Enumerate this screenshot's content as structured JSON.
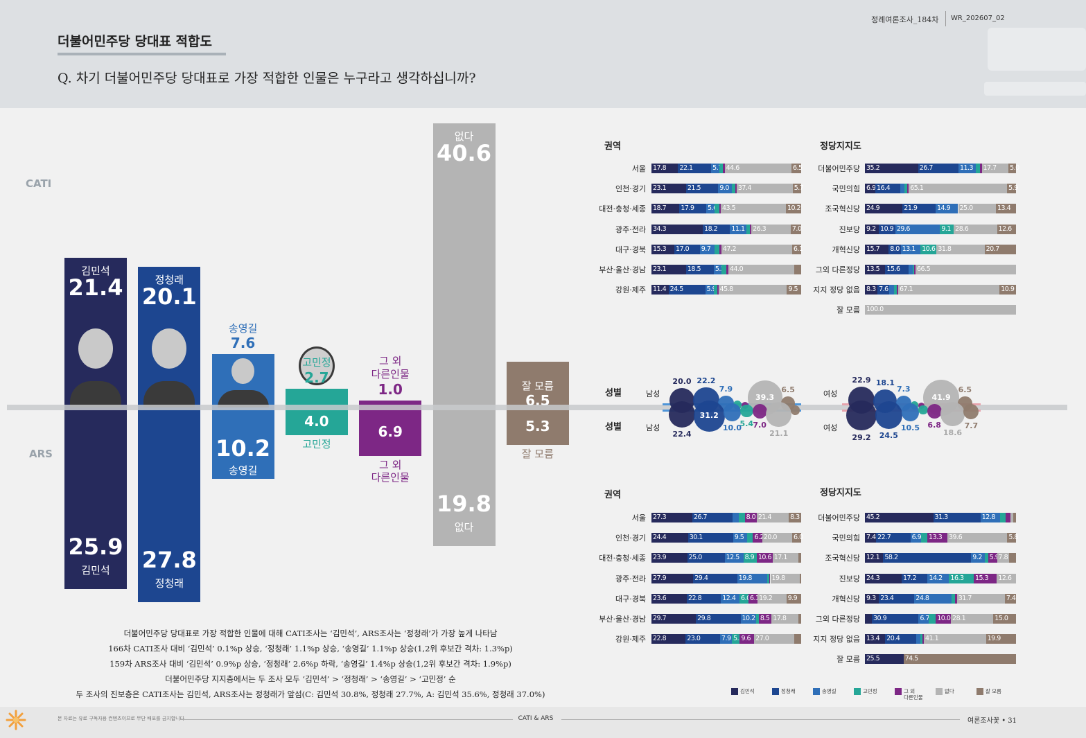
{
  "header": {
    "title": "더불어민주당 당대표 적합도",
    "question": "Q. 차기 더불어민주당 당대표로 가장 적합한 인물은 누구라고 생각하십니까?",
    "survey": "정례여론조사_184차",
    "code": "WR_202607_02"
  },
  "chart_data": [
    {
      "type": "bar",
      "orientation": "diverging",
      "categories": [
        "김민석",
        "정청래",
        "송영길",
        "고민정",
        "그 외 다른인물",
        "없다",
        "잘 모름"
      ],
      "colors": [
        "#262a5c",
        "#1d4690",
        "#2f6fb8",
        "#25a697",
        "#7d2785",
        "#b4b4b4",
        "#8f7b6d"
      ],
      "series": [
        {
          "name": "CATI",
          "values": [
            21.4,
            20.1,
            7.6,
            2.7,
            1.0,
            40.6,
            6.5
          ]
        },
        {
          "name": "ARS",
          "values": [
            25.9,
            27.8,
            10.2,
            4.0,
            6.9,
            19.8,
            5.3
          ]
        }
      ]
    },
    {
      "type": "bar",
      "stacked": true,
      "orientation": "horizontal",
      "title": "권역",
      "categories": [
        "서울",
        "인천·경기",
        "대전·충청·세종",
        "광주·전라",
        "대구·경북",
        "부산·울산·경남",
        "강원·제주"
      ],
      "series": [
        {
          "values": [
            17.8,
            23.1,
            18.7,
            34.3,
            15.3,
            23.1,
            11.4
          ]
        },
        {
          "values": [
            22.1,
            21.5,
            17.9,
            18.2,
            17.0,
            18.5,
            24.5
          ]
        },
        {
          "values": [
            5.7,
            9.0,
            5.6,
            11.1,
            9.7,
            5.2,
            5.9
          ]
        },
        {
          "values": [
            2.0,
            2.3,
            3.0,
            2.3,
            3.5,
            3.0,
            2.0
          ]
        },
        {
          "values": [
            1.3,
            1.0,
            1.1,
            0.8,
            1.2,
            1.6,
            0.9
          ]
        },
        {
          "values": [
            44.6,
            37.4,
            43.5,
            26.3,
            47.2,
            44.0,
            45.8
          ]
        },
        {
          "values": [
            6.5,
            5.7,
            10.2,
            7.0,
            6.1,
            4.6,
            9.5
          ]
        }
      ]
    },
    {
      "type": "bar",
      "stacked": true,
      "orientation": "horizontal",
      "title": "정당지지도",
      "categories": [
        "더불어민주당",
        "국민의힘",
        "조국혁신당",
        "진보당",
        "개혁신당",
        "그외 다른정당",
        "지지 정당 없음",
        "잘 모름"
      ],
      "series": [
        {
          "values": [
            35.2,
            6.9,
            24.9,
            9.2,
            15.7,
            13.5,
            8.3,
            0
          ]
        },
        {
          "values": [
            26.7,
            16.4,
            21.9,
            10.9,
            8.0,
            15.6,
            7.6,
            0
          ]
        },
        {
          "values": [
            11.3,
            3.0,
            14.9,
            29.6,
            13.1,
            2.4,
            3.5,
            0
          ]
        },
        {
          "values": [
            3.0,
            1.7,
            0,
            9.1,
            10.6,
            1.0,
            1.5,
            0
          ]
        },
        {
          "values": [
            1.1,
            1.0,
            0,
            0,
            0,
            1.0,
            1.1,
            0
          ]
        },
        {
          "values": [
            17.7,
            65.1,
            25.0,
            28.6,
            31.8,
            66.5,
            67.1,
            100.0
          ]
        },
        {
          "values": [
            5.0,
            5.9,
            13.4,
            12.6,
            20.7,
            0,
            10.9,
            0
          ]
        }
      ]
    },
    {
      "type": "bubble",
      "title": "성별",
      "categories": [
        "남성",
        "여성"
      ],
      "series": [
        {
          "values": [
            [
              20.0,
              22.2,
              7.9,
              2.5,
              1.6,
              39.3,
              6.5
            ],
            [
              22.9,
              18.1,
              7.3,
              2.0,
              1.3,
              41.9,
              6.5
            ]
          ]
        },
        {
          "values": [
            [
              22.4,
              31.2,
              10.0,
              5.4,
              7.0,
              21.1,
              2.9
            ],
            [
              29.2,
              24.5,
              10.5,
              2.7,
              6.8,
              18.6,
              7.7
            ]
          ]
        }
      ]
    },
    {
      "type": "bar",
      "stacked": true,
      "orientation": "horizontal",
      "title": "권역",
      "categories": [
        "서울",
        "인천·경기",
        "대전·충청·세종",
        "광주·전라",
        "대구·경북",
        "부산·울산·경남",
        "강원·제주"
      ],
      "series": [
        {
          "values": [
            27.3,
            24.4,
            23.9,
            27.9,
            23.6,
            29.7,
            22.8
          ]
        },
        {
          "values": [
            26.7,
            30.1,
            25.0,
            29.4,
            22.8,
            29.8,
            23.0
          ]
        },
        {
          "values": [
            4.5,
            9.5,
            12.5,
            19.8,
            12.4,
            10.2,
            7.9
          ]
        },
        {
          "values": [
            3.8,
            3.8,
            8.9,
            1.5,
            6.0,
            2.0,
            5.3
          ]
        },
        {
          "values": [
            8.0,
            6.2,
            10.6,
            0.8,
            6.1,
            8.5,
            9.6
          ]
        },
        {
          "values": [
            21.4,
            20.0,
            17.1,
            19.8,
            19.2,
            17.8,
            27.0
          ]
        },
        {
          "values": [
            8.3,
            6.0,
            2.0,
            0.8,
            9.9,
            2.0,
            4.4
          ]
        }
      ]
    },
    {
      "type": "bar",
      "stacked": true,
      "orientation": "horizontal",
      "title": "정당지지도",
      "categories": [
        "더불어민주당",
        "국민의힘",
        "조국혁신당",
        "진보당",
        "개혁신당",
        "그외 다른정당",
        "지지 정당 없음",
        "잘 모름"
      ],
      "series": [
        {
          "values": [
            45.2,
            7.4,
            12.1,
            24.3,
            9.3,
            4.6,
            13.4,
            25.5
          ]
        },
        {
          "values": [
            31.3,
            22.7,
            58.2,
            17.2,
            23.4,
            30.9,
            20.4,
            0
          ]
        },
        {
          "values": [
            12.8,
            6.9,
            9.2,
            14.2,
            24.8,
            6.7,
            3.0,
            0
          ]
        },
        {
          "values": [
            4.0,
            4.3,
            2.0,
            16.3,
            2.0,
            4.7,
            1.2,
            0
          ]
        },
        {
          "values": [
            3.0,
            13.3,
            5.9,
            15.3,
            1.4,
            10.0,
            1.0,
            0
          ]
        },
        {
          "values": [
            2.0,
            39.6,
            7.8,
            12.6,
            31.7,
            28.1,
            41.1,
            0
          ]
        },
        {
          "values": [
            1.7,
            5.8,
            4.8,
            0,
            7.4,
            15.0,
            19.9,
            74.5
          ]
        }
      ]
    }
  ],
  "notes": [
    "더불어민주당 당대표로 가장 적합한 인물에 대해 CATI조사는 ‘김민석’, ARS조사는 ‘정청래’가 가장 높게 나타남",
    "166차 CATI조사 대비 ‘김민석’ 0.1%p 상승, ‘정청래’ 1.1%p 상승, ‘송영길’ 1.1%p 상승(1,2위 후보간 격차: 1.3%p)",
    "159차 ARS조사 대비 ‘김민석’ 0.9%p 상승, ‘정청래’ 2.6%p 하락, ‘송영길’ 1.4%p 상승(1,2위 후보간 격차: 1.9%p)",
    "더불어민주당 지지층에서는 두 조사 모두 ‘김민석’ > ‘정청래’ > ‘송영길’ > ‘고민정’ 순",
    "두 조사의 진보층은 CATI조사는 김민석, ARS조사는 정청래가 앞섬(C: 김민석 30.8%, 정청래 27.7%, A: 김민석 35.6%, 정청래 37.0%)"
  ],
  "footer": {
    "notice": "본 자료는 유료 구독자용 컨텐츠이므로 무단 배포를 금지합니다",
    "section": "CATI & ARS",
    "page": "여론조사꽃 • 31"
  }
}
